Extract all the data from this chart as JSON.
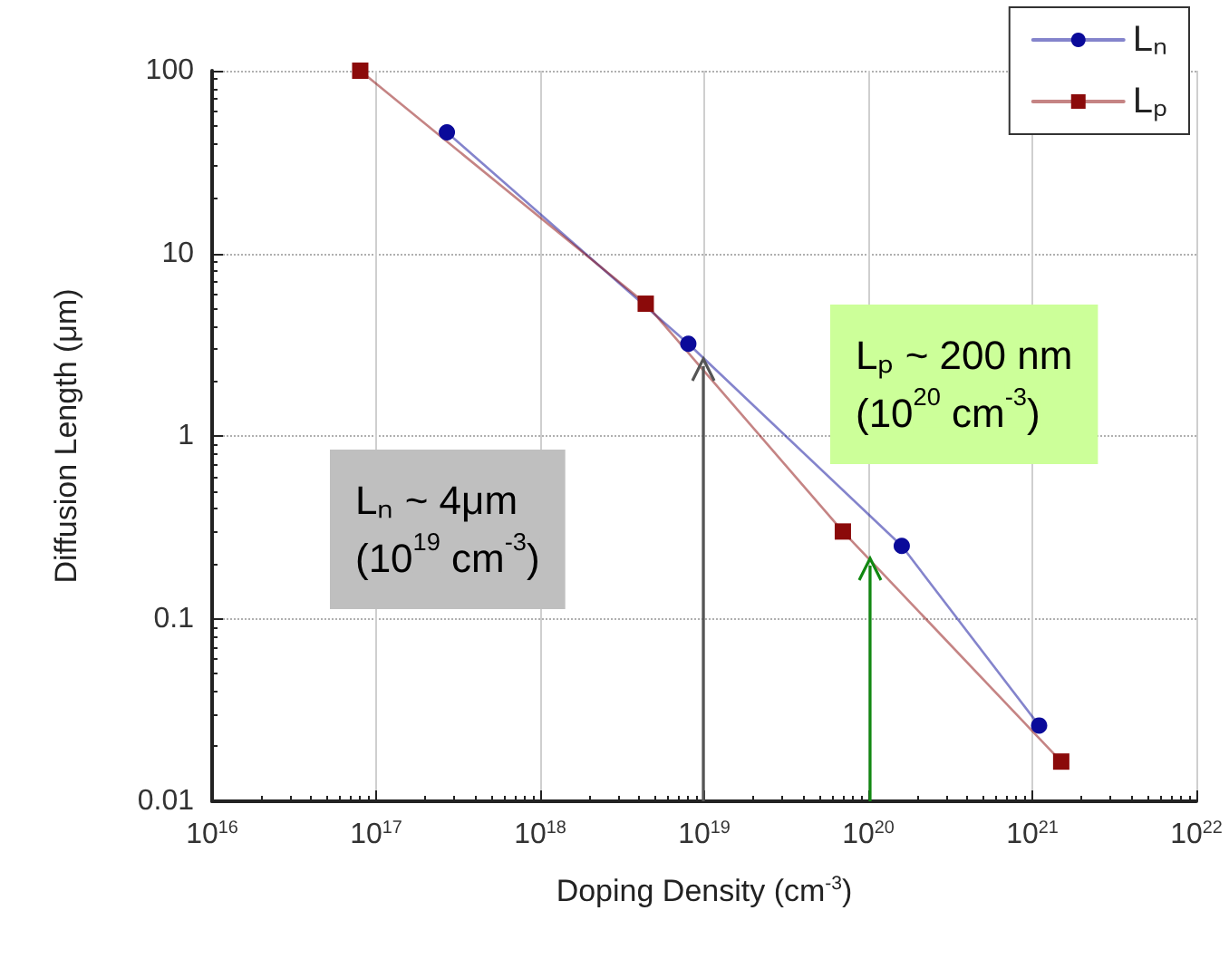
{
  "chart_data": {
    "type": "line",
    "xlabel": "Doping Density (cm$^{-3}$)",
    "ylabel": "Diffusion Length (μm)",
    "log": "xy",
    "grid": true,
    "legend": "top right",
    "xlim": [
      1e+16,
      1e+22
    ],
    "ylim": [
      0.01,
      100
    ],
    "xticks": [
      {
        "value": 1e+16,
        "label": "10$^{16}$"
      },
      {
        "value": 1e+17,
        "label": "10$^{17}$"
      },
      {
        "value": 1e+18,
        "label": "10$^{18}$"
      },
      {
        "value": 1e+19,
        "label": "10$^{19}$"
      },
      {
        "value": 1e+20,
        "label": "10$^{20}$"
      },
      {
        "value": 1e+21,
        "label": "10$^{21}$"
      },
      {
        "value": 1e+22,
        "label": "10$^{22}$"
      }
    ],
    "yticks": [
      0.01,
      0.1,
      1,
      10,
      100
    ],
    "series": [
      {
        "name": "Lₙ",
        "color": "#0a0a9a",
        "marker": "circle",
        "x": [
          2.7e+17,
          8e+18,
          1.6e+20,
          1.1e+21
        ],
        "values": [
          46,
          3.2,
          0.25,
          0.026
        ]
      },
      {
        "name": "Lₚ",
        "color": "#8b0a0a",
        "marker": "square",
        "x": [
          8e+16,
          4.4e+18,
          7e+19,
          1.5e+21
        ],
        "values": [
          100,
          5.3,
          0.3,
          0.0165
        ]
      }
    ],
    "annotations": [
      "Lₙ ~ 4μm\n(10$^{19}$ cm$^{-3}$)",
      "Lₚ ~ 200 nm\n(10$^{20}$ cm$^{-3}$)"
    ]
  }
}
